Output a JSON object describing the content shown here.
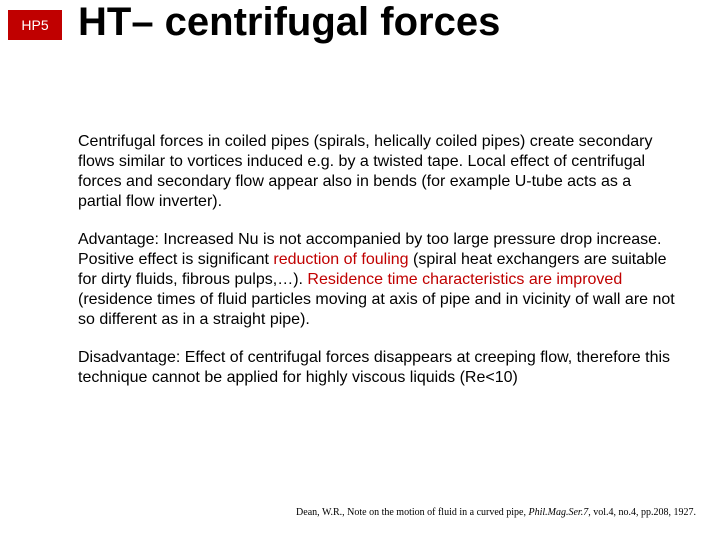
{
  "badge": {
    "label": "HP5",
    "bg_color": "#c00000",
    "text_color": "#ffffff",
    "font_size": 14,
    "font_weight": "normal"
  },
  "title": {
    "text": "HT– centrifugal forces",
    "font_size": 40,
    "color": "#000000"
  },
  "body": {
    "font_size": 16,
    "line_height": 1.25,
    "text_color": "#000000",
    "highlight_color": "#c00000",
    "para1": {
      "t": "Centrifugal forces in coiled pipes (spirals, helically coiled pipes) create secondary flows similar to vortices induced e.g. by a twisted tape. Local effect of centrifugal forces and secondary flow appear also in bends (for example U-tube acts as a partial flow inverter)."
    },
    "para2": {
      "t1": "Advantage: Increased Nu is not accompanied by too large pressure drop increase. Positive effect is significant ",
      "hl1": "reduction of fouling",
      "t2": " (spiral heat exchangers are suitable for dirty fluids, fibrous pulps,…). ",
      "hl2": "Residence time characteristics are improved",
      "t3": " (residence times of fluid particles moving at axis of pipe and in vicinity of wall are not so different as in a straight pipe)."
    },
    "para3": {
      "t": "Disadvantage:  Effect of centrifugal forces disappears at creeping flow, therefore this technique cannot be applied for highly viscous liquids (Re<10)"
    }
  },
  "footer": {
    "font_size": 10,
    "color": "#000000",
    "t1": "Dean, W.R., Note on the motion of fluid in a curved pipe, ",
    "ital": "Phil.Mag.Ser.7",
    "t2": ", vol.4, no.4, pp.208, 1927."
  }
}
